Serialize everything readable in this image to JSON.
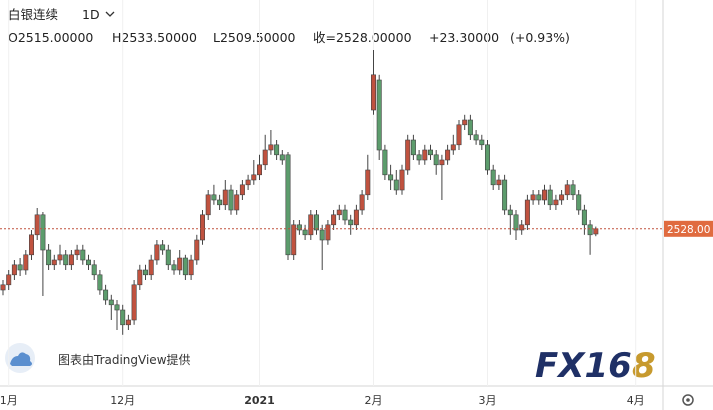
{
  "chart_data": {
    "type": "candlestick",
    "header": {
      "symbol": "白银连续",
      "interval": "1D",
      "open": "O2515.00000",
      "high": "H2533.50000",
      "low": "L2509.50000",
      "close": "收=2528.00000",
      "change": "+23.30000",
      "change_pct": "(+0.93%)"
    },
    "watermark": "图表由TradingView提供",
    "logo": {
      "part1": "FX16",
      "part2": "8"
    },
    "last_price": {
      "value": 2528,
      "label": "2528.00"
    },
    "up_color": "#c0523f",
    "down_color": "#5c9c6c",
    "ylim": [
      2137.5,
      3050
    ],
    "categories": [
      null,
      "1月",
      null,
      null,
      null,
      null,
      null,
      null,
      null,
      null,
      null,
      null,
      null,
      null,
      null,
      null,
      null,
      null,
      null,
      null,
      null,
      "12月",
      null,
      null,
      null,
      null,
      null,
      null,
      null,
      null,
      null,
      null,
      null,
      null,
      null,
      null,
      null,
      null,
      null,
      null,
      null,
      null,
      null,
      null,
      null,
      "2021",
      null,
      null,
      null,
      null,
      null,
      null,
      null,
      null,
      null,
      null,
      null,
      null,
      null,
      null,
      null,
      null,
      null,
      null,
      null,
      "2月",
      null,
      null,
      null,
      null,
      null,
      null,
      null,
      null,
      null,
      null,
      null,
      null,
      null,
      null,
      null,
      null,
      null,
      null,
      null,
      "3月",
      null,
      null,
      null,
      null,
      null,
      null,
      null,
      null,
      null,
      null,
      null,
      null,
      null,
      null,
      null,
      null,
      null,
      null,
      null,
      null,
      null,
      null,
      null,
      null,
      null,
      "4月"
    ],
    "open": [
      2375,
      2388,
      2413,
      2438,
      2425,
      2463,
      2513,
      2563,
      2475,
      2438,
      2450,
      2463,
      2438,
      2463,
      2475,
      2450,
      2438,
      2413,
      2375,
      2350,
      2338,
      2325,
      2288,
      2300,
      2388,
      2425,
      2413,
      2450,
      2488,
      2475,
      2438,
      2425,
      2455,
      2413,
      2450,
      2500,
      2563,
      2613,
      2600,
      2588,
      2625,
      2575,
      2613,
      2638,
      2650,
      2663,
      2688,
      2725,
      2738,
      2713,
      2713,
      2463,
      2538,
      2525,
      2513,
      2563,
      2525,
      2500,
      2538,
      2563,
      2575,
      2550,
      2538,
      2575,
      2613,
      2825,
      2900,
      2725,
      2663,
      2650,
      2625,
      2675,
      2750,
      2713,
      2700,
      2725,
      2713,
      2688,
      2700,
      2725,
      2738,
      2788,
      2800,
      2763,
      2750,
      2738,
      2675,
      2638,
      2650,
      2575,
      2563,
      2525,
      2538,
      2600,
      2613,
      2600,
      2625,
      2588,
      2600,
      2613,
      2638,
      2613,
      2575,
      2538,
      2515,
      null,
      null,
      null,
      null,
      null,
      null,
      null
    ],
    "high": [
      2400,
      2425,
      2450,
      2455,
      2475,
      2525,
      2580,
      2570,
      2490,
      2463,
      2488,
      2475,
      2475,
      2488,
      2488,
      2463,
      2450,
      2425,
      2388,
      2363,
      2350,
      2338,
      2313,
      2400,
      2438,
      2438,
      2463,
      2500,
      2500,
      2488,
      2450,
      2475,
      2463,
      2463,
      2513,
      2575,
      2625,
      2638,
      2613,
      2650,
      2638,
      2625,
      2650,
      2663,
      2700,
      2713,
      2763,
      2775,
      2750,
      2725,
      2720,
      2550,
      2550,
      2538,
      2575,
      2575,
      2538,
      2550,
      2575,
      2588,
      2588,
      2563,
      2588,
      2625,
      2713,
      2975,
      2913,
      2738,
      2688,
      2675,
      2688,
      2763,
      2763,
      2725,
      2738,
      2738,
      2725,
      2713,
      2738,
      2763,
      2800,
      2813,
      2813,
      2775,
      2763,
      2750,
      2688,
      2663,
      2663,
      2588,
      2575,
      2550,
      2613,
      2625,
      2625,
      2638,
      2638,
      2613,
      2625,
      2650,
      2650,
      2625,
      2588,
      2550,
      2533.5,
      null,
      null,
      null,
      null,
      null,
      null,
      null
    ],
    "low": [
      2362,
      2375,
      2400,
      2410,
      2413,
      2450,
      2500,
      2360,
      2425,
      2425,
      2438,
      2425,
      2425,
      2450,
      2438,
      2425,
      2400,
      2363,
      2338,
      2300,
      2275,
      2263,
      2275,
      2288,
      2375,
      2400,
      2400,
      2438,
      2463,
      2425,
      2413,
      2413,
      2400,
      2400,
      2438,
      2488,
      2550,
      2588,
      2575,
      2575,
      2563,
      2563,
      2600,
      2625,
      2638,
      2650,
      2675,
      2713,
      2700,
      2688,
      2450,
      2450,
      2513,
      2500,
      2500,
      2513,
      2425,
      2488,
      2525,
      2550,
      2538,
      2513,
      2525,
      2563,
      2600,
      2813,
      2700,
      2650,
      2625,
      2613,
      2613,
      2663,
      2700,
      2688,
      2688,
      2700,
      2663,
      2600,
      2688,
      2713,
      2725,
      2775,
      2750,
      2738,
      2725,
      2663,
      2625,
      2625,
      2563,
      2513,
      2500,
      2513,
      2525,
      2588,
      2588,
      2588,
      2575,
      2575,
      2588,
      2600,
      2600,
      2563,
      2513,
      2463,
      2509.5,
      null,
      null,
      null,
      null,
      null,
      null,
      null
    ],
    "close": [
      2388,
      2413,
      2438,
      2425,
      2463,
      2513,
      2563,
      2475,
      2438,
      2450,
      2463,
      2438,
      2463,
      2475,
      2450,
      2438,
      2413,
      2375,
      2350,
      2338,
      2325,
      2288,
      2300,
      2388,
      2425,
      2413,
      2450,
      2488,
      2475,
      2438,
      2425,
      2455,
      2413,
      2450,
      2500,
      2563,
      2613,
      2600,
      2588,
      2625,
      2575,
      2613,
      2638,
      2650,
      2663,
      2688,
      2725,
      2738,
      2713,
      2700,
      2463,
      2538,
      2525,
      2513,
      2563,
      2525,
      2500,
      2538,
      2563,
      2575,
      2550,
      2538,
      2575,
      2613,
      2675,
      2913,
      2725,
      2663,
      2650,
      2625,
      2675,
      2750,
      2713,
      2700,
      2725,
      2713,
      2688,
      2700,
      2725,
      2738,
      2788,
      2800,
      2763,
      2750,
      2738,
      2675,
      2638,
      2650,
      2575,
      2563,
      2525,
      2538,
      2600,
      2613,
      2600,
      2625,
      2588,
      2600,
      2613,
      2638,
      2613,
      2575,
      2538,
      2513,
      2528,
      null,
      null,
      null,
      null,
      null,
      null,
      null
    ]
  }
}
